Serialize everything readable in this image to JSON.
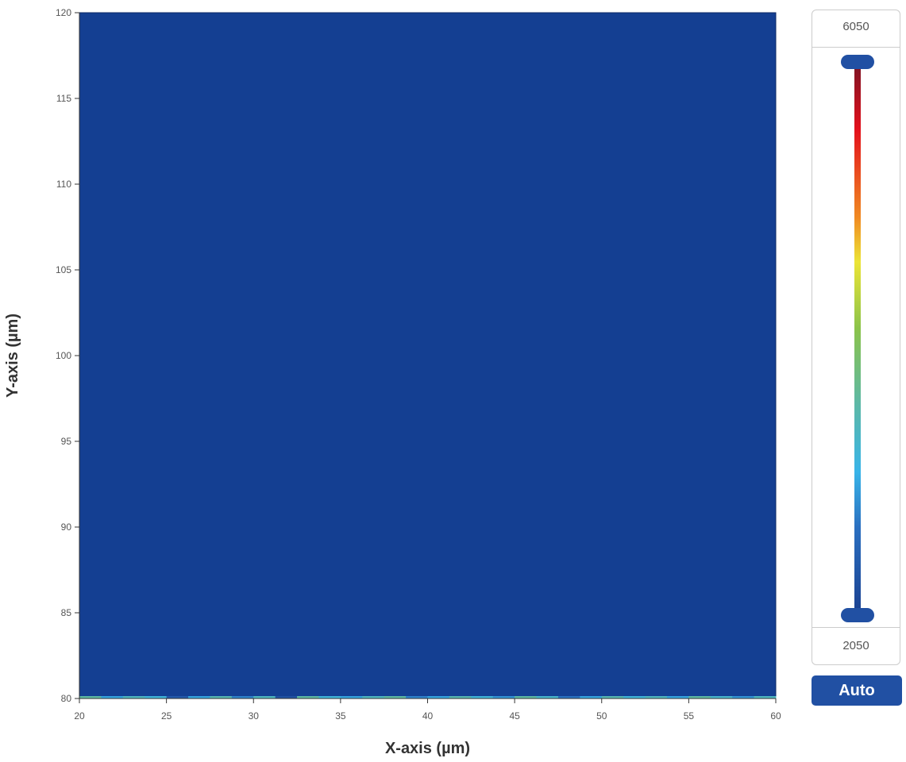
{
  "chart_data": {
    "type": "heatmap",
    "xlabel": "X-axis (µm)",
    "ylabel": "Y-axis (µm)",
    "xlim": [
      20,
      60
    ],
    "ylim": [
      80,
      120
    ],
    "xticks": [
      "20",
      "25",
      "30",
      "35",
      "40",
      "45",
      "50",
      "55",
      "60"
    ],
    "yticks": [
      "80",
      "85",
      "90",
      "95",
      "100",
      "105",
      "110",
      "115",
      "120"
    ],
    "fill_value": 2050,
    "fill_color": "#143f92",
    "bottom_row_y": 80,
    "bottom_row_x_range": [
      20,
      60
    ],
    "bottom_row_values": [
      3600,
      3000,
      3400,
      3200,
      2400,
      3000,
      3500,
      2800,
      3400,
      2300,
      3600,
      3200,
      3000,
      3400,
      3600,
      2800,
      3000,
      3500,
      3200,
      2900,
      3600,
      3300,
      2700,
      3000,
      3500,
      3200,
      3400,
      3000,
      3600,
      3300,
      2900,
      3400
    ],
    "colorscale": {
      "max": "6050",
      "min": "2050",
      "stops": [
        {
          "pos": 0.0,
          "color": "#7a1424"
        },
        {
          "pos": 0.12,
          "color": "#e3101c"
        },
        {
          "pos": 0.28,
          "color": "#f08a22"
        },
        {
          "pos": 0.36,
          "color": "#ece436"
        },
        {
          "pos": 0.48,
          "color": "#8bc34a"
        },
        {
          "pos": 0.62,
          "color": "#5cb8a8"
        },
        {
          "pos": 0.74,
          "color": "#38b4e8"
        },
        {
          "pos": 0.84,
          "color": "#2a6fc0"
        },
        {
          "pos": 1.0,
          "color": "#1a3f8f"
        }
      ]
    }
  },
  "controls": {
    "auto_label": "Auto"
  }
}
